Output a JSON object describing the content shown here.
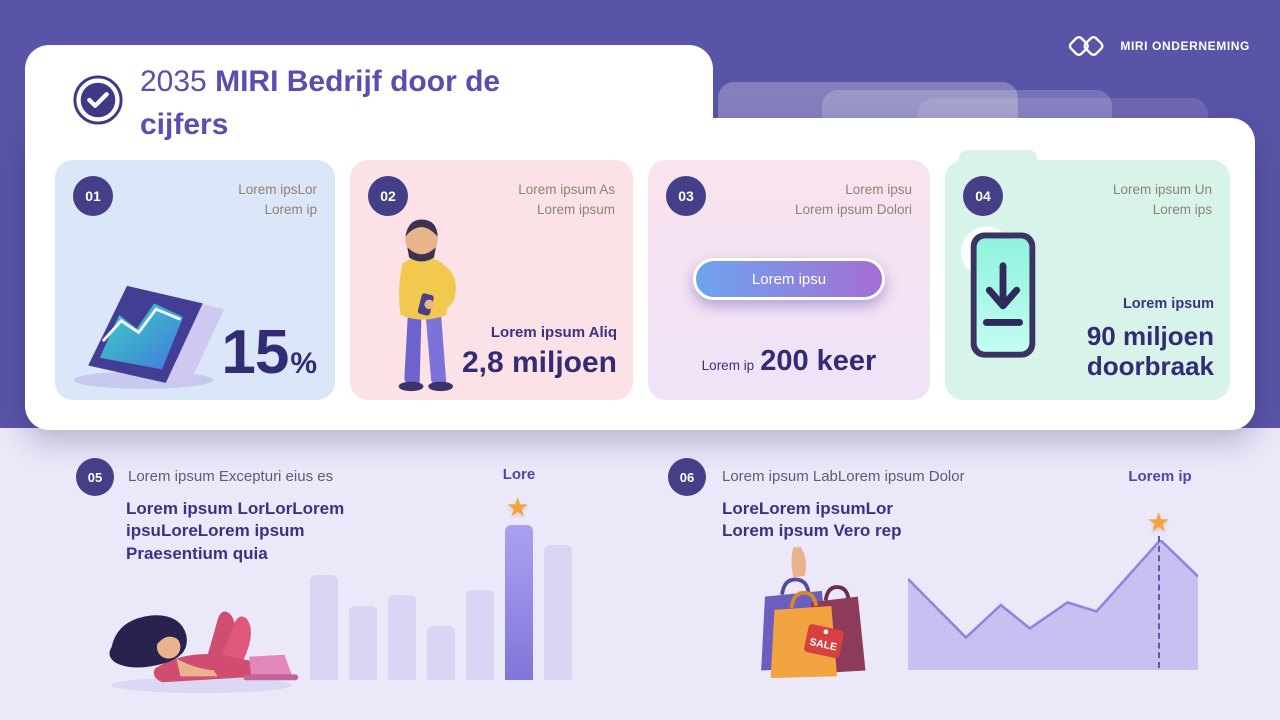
{
  "brand": {
    "name": "MIRI ONDERNEMING"
  },
  "title": {
    "year": "2035",
    "main": "MIRI Bedrijf door de cijfers"
  },
  "stat_cards": [
    {
      "number": "01",
      "note_line1": "Lorem ipsLor",
      "note_line2": "Lorem ip",
      "value": "15",
      "unit": "%"
    },
    {
      "number": "02",
      "note_line1": "Lorem ipsum As",
      "note_line2": "Lorem ipsum",
      "label": "Lorem ipsum Aliq",
      "value": "2,8 miljoen"
    },
    {
      "number": "03",
      "note_line1": "Lorem ipsu",
      "note_line2": "Lorem ipsum Dolori",
      "button_label": "Lorem ipsu",
      "label": "Lorem ip",
      "value": "200 keer"
    },
    {
      "number": "04",
      "note_line1": "Lorem ipsum Un",
      "note_line2": "Lorem ips",
      "label": "Lorem ipsum",
      "value_line1": "90 miljoen",
      "value_line2": "doorbraak"
    }
  ],
  "sections": [
    {
      "number": "05",
      "subtitle": "Lorem ipsum Excepturi eius es",
      "body_line1": "Lorem ipsum LorLorLorem",
      "body_line2": "ipsuLoreLorem ipsum",
      "body_line3": "Praesentium quia"
    },
    {
      "number": "06",
      "subtitle": "Lorem ipsum LabLorem ipsum Dolor",
      "body_line1": "LoreLorem ipsumLor",
      "body_line2": "Lorem ipsum Vero rep"
    }
  ],
  "illustrations": {
    "sale_tag_label": "SALE"
  },
  "colors": {
    "background": "#5a54a8",
    "badge": "#443f86",
    "stat_text": "#312c74",
    "card1_bg": "#dbe7f9",
    "card2_bg": "#fce2e6",
    "card3_bg": "#f6e2f4",
    "card4_bg": "#d8f3e9",
    "band_bg": "#ebe8f9",
    "star": "#f2a33c",
    "button_gradient_left": "#6da4ee",
    "button_gradient_right": "#a56ed4"
  },
  "chart_data": [
    {
      "type": "bar",
      "values": [
        68,
        48,
        55,
        35,
        58,
        100,
        87
      ],
      "highlight_index": 5,
      "highlight_label": "Lore",
      "ylim": [
        0,
        100
      ],
      "grid": false,
      "legend": false
    },
    {
      "type": "area",
      "points": [
        [
          0,
          70
        ],
        [
          20,
          25
        ],
        [
          32,
          50
        ],
        [
          42,
          32
        ],
        [
          55,
          52
        ],
        [
          65,
          45
        ],
        [
          87,
          100
        ],
        [
          100,
          72
        ]
      ],
      "marker_x_pct": 87,
      "marker_label": "Lorem ip",
      "grid": false,
      "legend": false
    }
  ]
}
